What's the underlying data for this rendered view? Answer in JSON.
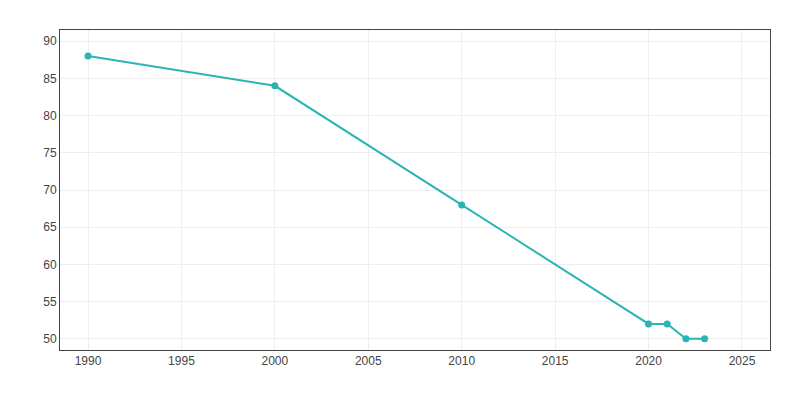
{
  "chart_data": {
    "type": "line",
    "x": [
      1990,
      2000,
      2010,
      2020,
      2021,
      2022,
      2023
    ],
    "values": [
      88,
      84,
      68,
      52,
      52,
      50,
      50
    ],
    "color": "#2ab5b5",
    "marker": "circle",
    "xlim": [
      1988.5,
      2026.5
    ],
    "xticks": [
      1990,
      1995,
      2000,
      2005,
      2010,
      2015,
      2020,
      2025
    ],
    "ylim": [
      48.5,
      91.5
    ],
    "yticks": [
      50,
      55,
      60,
      65,
      70,
      75,
      80,
      85,
      90
    ],
    "grid": true
  }
}
